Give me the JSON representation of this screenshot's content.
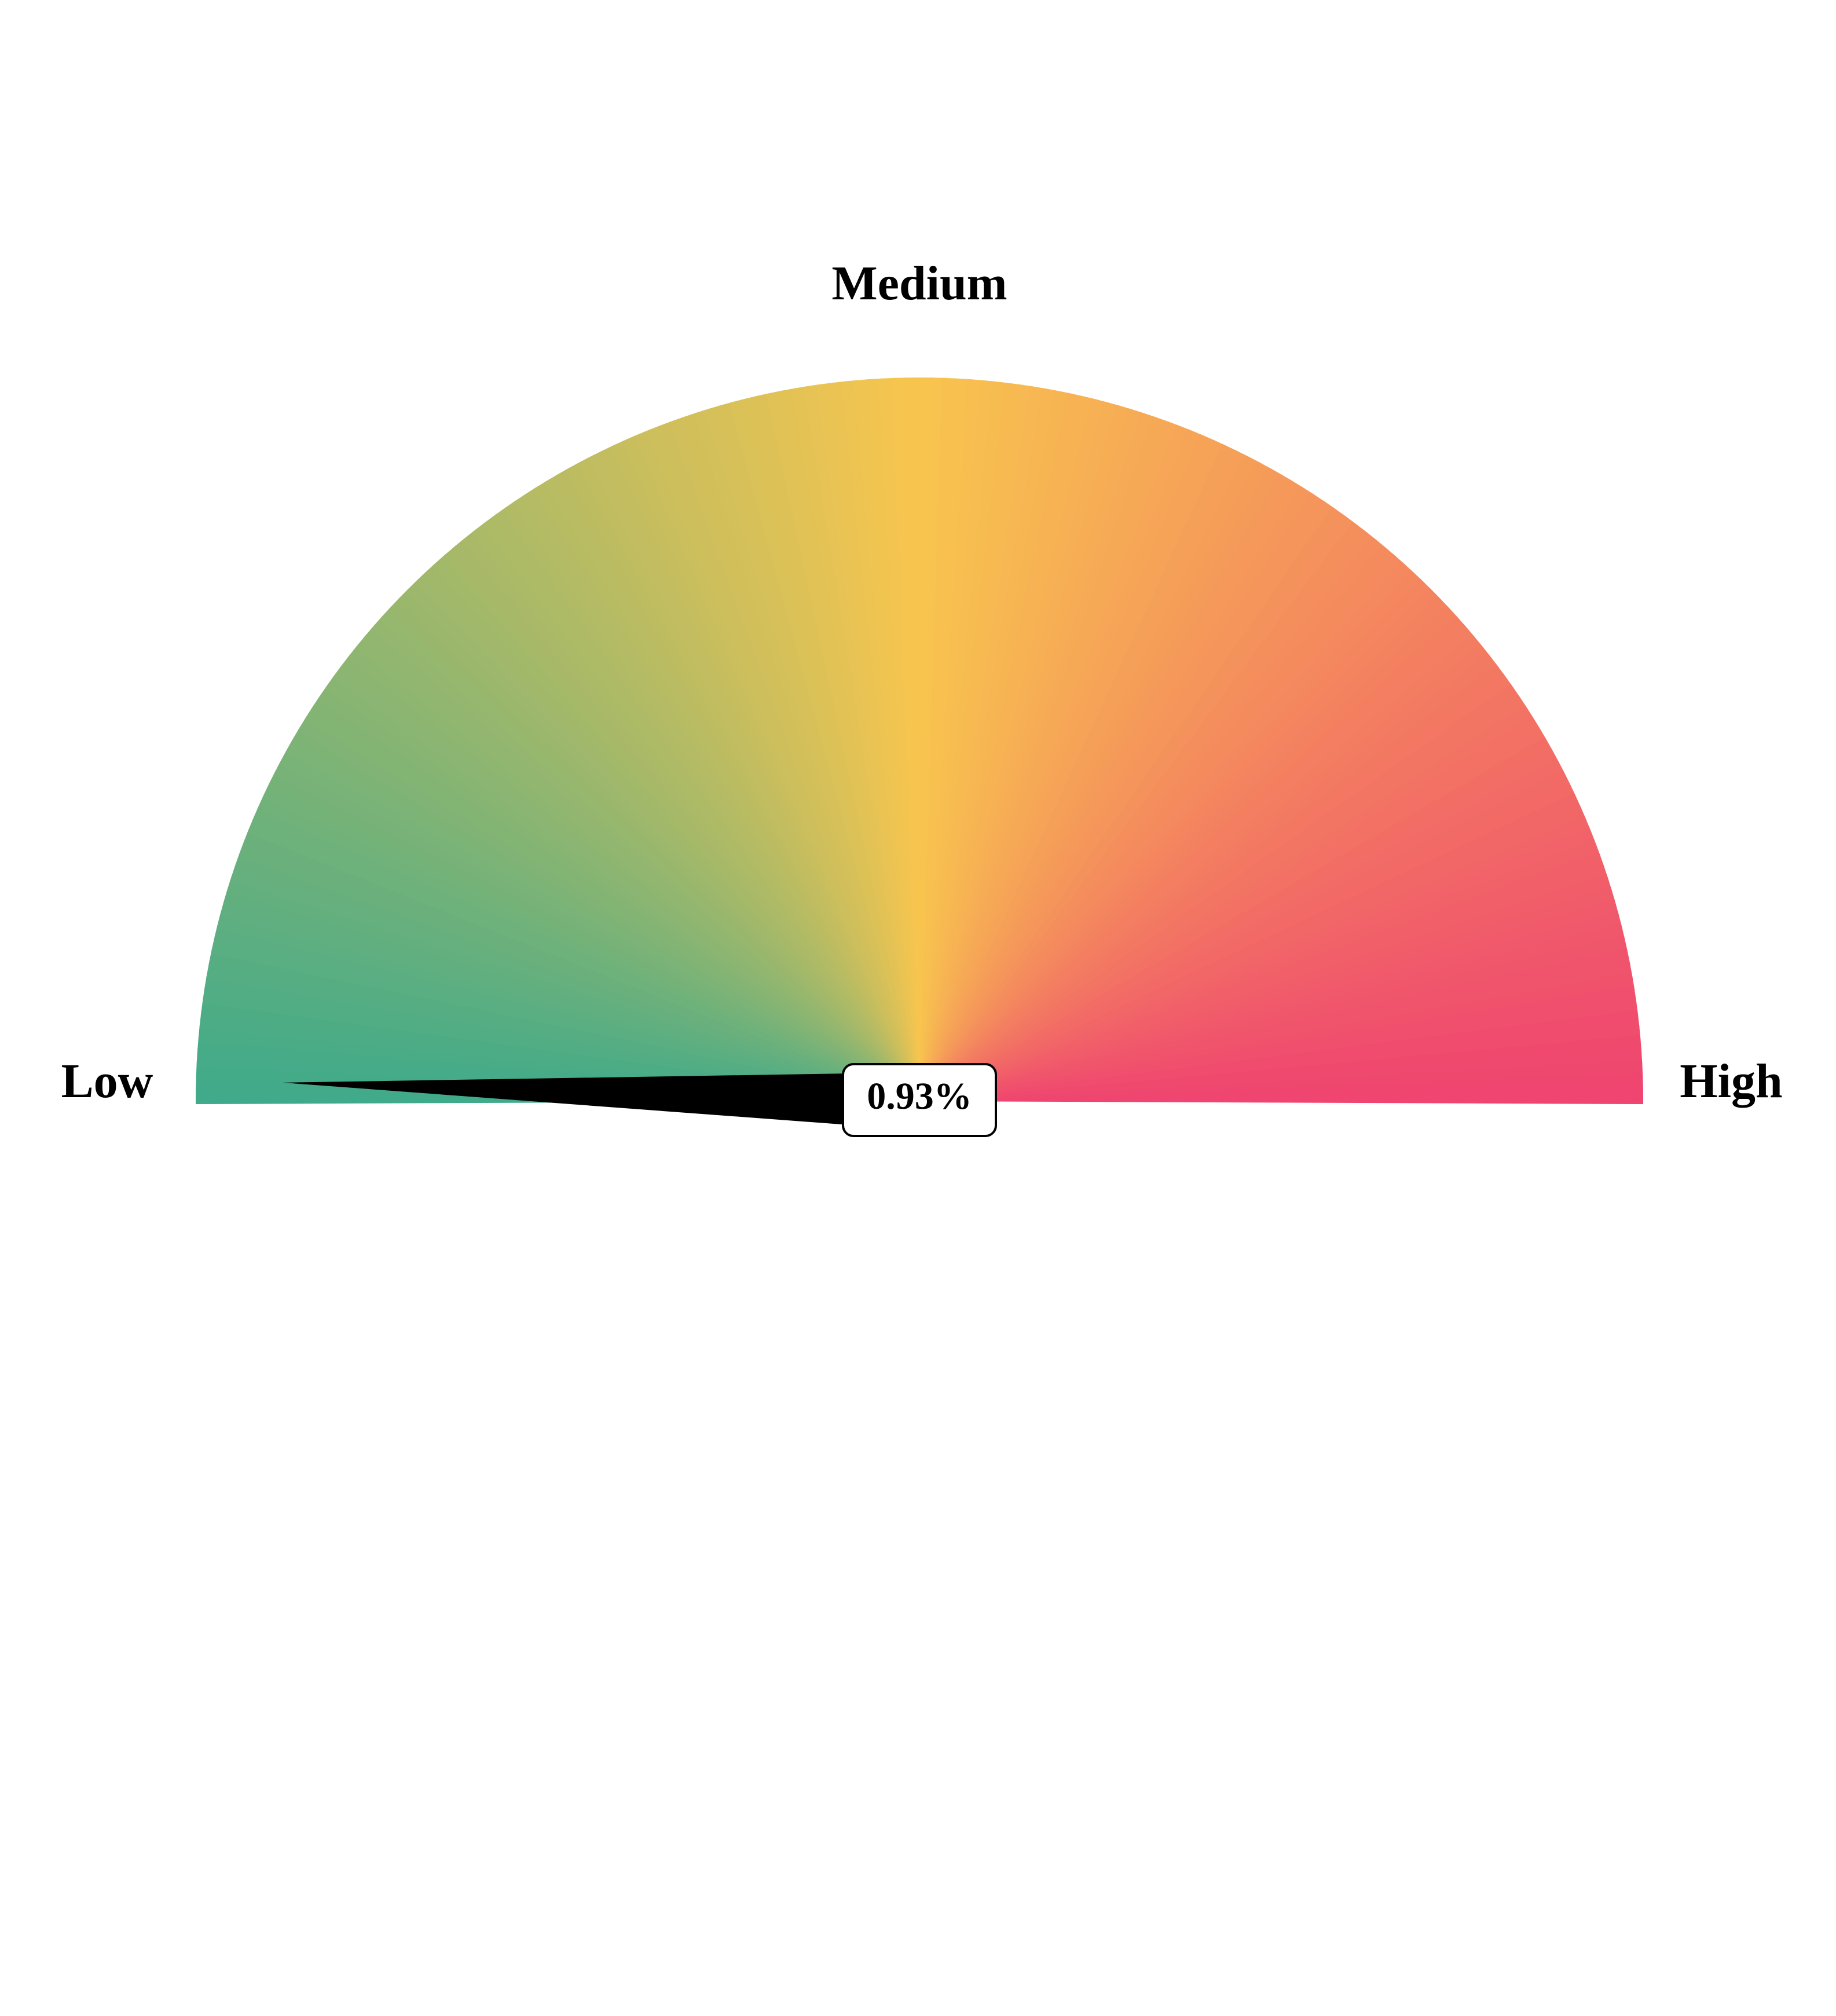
{
  "chart_data": {
    "type": "gauge",
    "value": 0.93,
    "value_label": "0.93%",
    "range": [
      0,
      100
    ],
    "labels": {
      "low": "Low",
      "medium": "Medium",
      "high": "High"
    },
    "gradient_colors": [
      "#3faa8a",
      "#f8c54e",
      "#ef4470"
    ],
    "needle_color": "#000000"
  }
}
